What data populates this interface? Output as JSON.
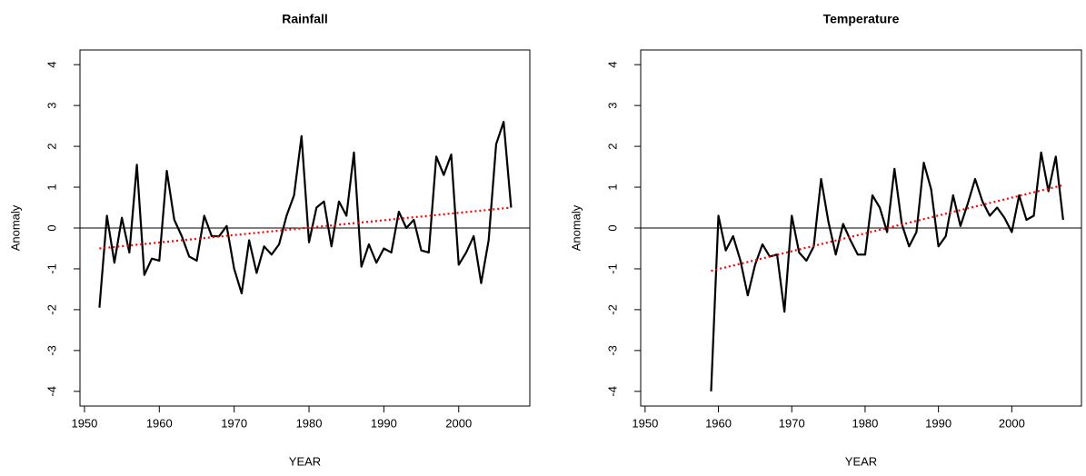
{
  "chart_data": [
    {
      "type": "line",
      "title": "Rainfall",
      "xlabel": "YEAR",
      "ylabel": "Anomaly",
      "x": [
        1952,
        1953,
        1954,
        1955,
        1956,
        1957,
        1958,
        1959,
        1960,
        1961,
        1962,
        1963,
        1964,
        1965,
        1966,
        1967,
        1968,
        1969,
        1970,
        1971,
        1972,
        1973,
        1974,
        1975,
        1976,
        1977,
        1978,
        1979,
        1980,
        1981,
        1982,
        1983,
        1984,
        1985,
        1986,
        1987,
        1988,
        1989,
        1990,
        1991,
        1992,
        1993,
        1994,
        1995,
        1996,
        1997,
        1998,
        1999,
        2000,
        2001,
        2002,
        2003,
        2004,
        2005,
        2006,
        2007
      ],
      "series": [
        {
          "color": "#000000",
          "values": [
            -1.95,
            0.3,
            -0.85,
            0.25,
            -0.6,
            1.55,
            -1.15,
            -0.75,
            -0.8,
            1.4,
            0.2,
            -0.2,
            -0.7,
            -0.8,
            0.3,
            -0.2,
            -0.2,
            0.05,
            -1.0,
            -1.6,
            -0.3,
            -1.1,
            -0.45,
            -0.65,
            -0.4,
            0.3,
            0.8,
            2.25,
            -0.35,
            0.5,
            0.65,
            -0.45,
            0.65,
            0.3,
            1.85,
            -0.95,
            -0.4,
            -0.85,
            -0.5,
            -0.6,
            0.4,
            0.0,
            0.2,
            -0.55,
            -0.6,
            1.75,
            1.3,
            1.8,
            -0.9,
            -0.6,
            -0.2,
            -1.35,
            -0.3,
            2.05,
            2.6,
            0.5
          ]
        }
      ],
      "trend": {
        "color": "#ff0000",
        "x": [
          1952,
          2007
        ],
        "values": [
          -0.5,
          0.5
        ]
      },
      "reference_line": 0,
      "xlim": [
        1949.4,
        2009.5
      ],
      "ylim": [
        -4.36,
        4.36
      ],
      "xticks": [
        1950,
        1960,
        1970,
        1980,
        1990,
        2000
      ],
      "yticks": [
        -4,
        -3,
        -2,
        -1,
        0,
        1,
        2,
        3,
        4
      ]
    },
    {
      "type": "line",
      "title": "Temperature",
      "xlabel": "YEAR",
      "ylabel": "Anomaly",
      "x": [
        1959,
        1960,
        1961,
        1962,
        1963,
        1964,
        1965,
        1966,
        1967,
        1968,
        1969,
        1970,
        1971,
        1972,
        1973,
        1974,
        1975,
        1976,
        1977,
        1978,
        1979,
        1980,
        1981,
        1982,
        1983,
        1984,
        1985,
        1986,
        1987,
        1988,
        1989,
        1990,
        1991,
        1992,
        1993,
        1994,
        1995,
        1996,
        1997,
        1998,
        1999,
        2000,
        2001,
        2002,
        2003,
        2004,
        2005,
        2006,
        2007
      ],
      "series": [
        {
          "color": "#000000",
          "values": [
            -4.0,
            0.3,
            -0.55,
            -0.2,
            -0.8,
            -1.65,
            -0.9,
            -0.4,
            -0.7,
            -0.65,
            -2.05,
            0.3,
            -0.6,
            -0.8,
            -0.45,
            1.2,
            0.15,
            -0.65,
            0.1,
            -0.3,
            -0.65,
            -0.65,
            0.8,
            0.5,
            -0.1,
            1.45,
            0.1,
            -0.45,
            -0.1,
            1.6,
            0.95,
            -0.45,
            -0.2,
            0.8,
            0.05,
            0.6,
            1.2,
            0.65,
            0.3,
            0.5,
            0.25,
            -0.1,
            0.8,
            0.2,
            0.3,
            1.85,
            0.9,
            1.75,
            0.2
          ]
        }
      ],
      "trend": {
        "color": "#ff0000",
        "x": [
          1959,
          2007
        ],
        "values": [
          -1.05,
          1.05
        ]
      },
      "reference_line": 0,
      "xlim": [
        1949.4,
        2009.5
      ],
      "ylim": [
        -4.36,
        4.36
      ],
      "xticks": [
        1950,
        1960,
        1970,
        1980,
        1990,
        2000
      ],
      "yticks": [
        -4,
        -3,
        -2,
        -1,
        0,
        1,
        2,
        3,
        4
      ]
    }
  ]
}
